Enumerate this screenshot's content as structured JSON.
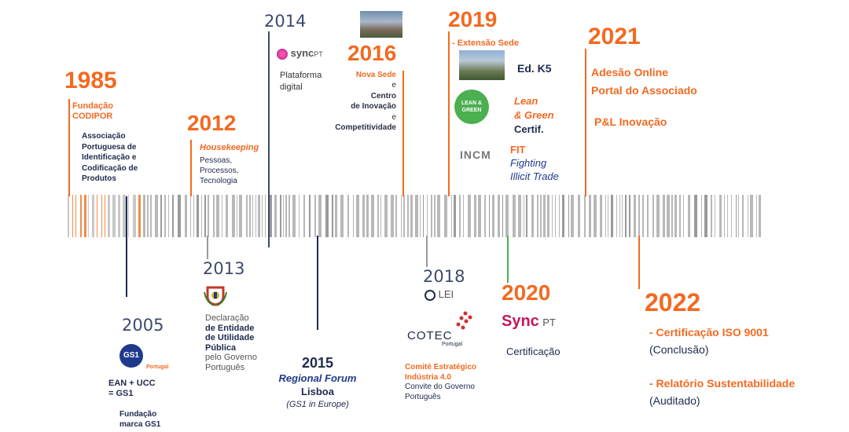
{
  "colors": {
    "orange": "#f26a21",
    "navy": "#1f2a4d",
    "blue": "#1f3a8a",
    "green": "#4caf50",
    "gray": "#9a9a9a"
  },
  "events": {
    "y1985": {
      "year": "1985",
      "line1": "Fundação",
      "line2": "CODIPOR",
      "desc": [
        "Associação",
        "Portuguesa de",
        "Identificação e",
        "Codificação de",
        "Produtos"
      ]
    },
    "y2005": {
      "year": "2005",
      "logo": "GS1",
      "logo_sub": "Portugal",
      "line1": "EAN + UCC",
      "line2": "= GS1",
      "line3": "Fundação",
      "line4": "marca GS1"
    },
    "y2012": {
      "year": "2012",
      "title": "Housekeeping",
      "desc": [
        "Pessoas,",
        "Processos,",
        "Tecnologia"
      ]
    },
    "y2013": {
      "year": "2013",
      "desc1": "Declaração",
      "desc2": "de Entidade",
      "desc3": "de Utilidade",
      "desc4": "Pública",
      "desc5": "pelo Governo",
      "desc6": "Português"
    },
    "y2014": {
      "year": "2014",
      "logo_sync": "sync",
      "logo_pt": "PT",
      "desc": [
        "Plataforma",
        "digital"
      ]
    },
    "y2015": {
      "year": "2015",
      "line1": "Regional Forum",
      "line2": "Lisboa",
      "line3": "(GS1 in Europe)"
    },
    "y2016": {
      "year": "2016",
      "line1": "Nova Sede",
      "line2": "e",
      "line3": "Centro",
      "line4": "de Inovação",
      "line5": "e",
      "line6": "Competitividade"
    },
    "y2018": {
      "year": "2018",
      "logo_lei": "LEI",
      "logo_cotec": "COTEC",
      "logo_cotec_sub": "Portugal",
      "line1": "Comité Estratégico",
      "line2": "Indústria 4.0",
      "line3": "Convite do Governo",
      "line4": "Português"
    },
    "y2019": {
      "year": "2019",
      "subtitle": "- Extensão Sede",
      "k5": "Ed. K5",
      "lean1": "Lean",
      "lean2": "& Green",
      "certif": "Certif.",
      "lean_logo1": "LEAN &",
      "lean_logo2": "GREEN",
      "incm": "INCM",
      "fit": "FIT",
      "fit1": "Fighting",
      "fit2": "Illicit Trade"
    },
    "y2020": {
      "year": "2020",
      "logo_sync": "Sync",
      "logo_pt": "PT",
      "desc": "Certificação"
    },
    "y2021": {
      "year": "2021",
      "line1": "Adesão Online",
      "line2": "Portal do Associado",
      "line3": "P&L Inovação"
    },
    "y2022": {
      "year": "2022",
      "line1": "- Certificação ISO 9001",
      "line2": "(Conclusão)",
      "line3": "- Relatório Sustentabilidade",
      "line4": "(Auditado)"
    }
  }
}
